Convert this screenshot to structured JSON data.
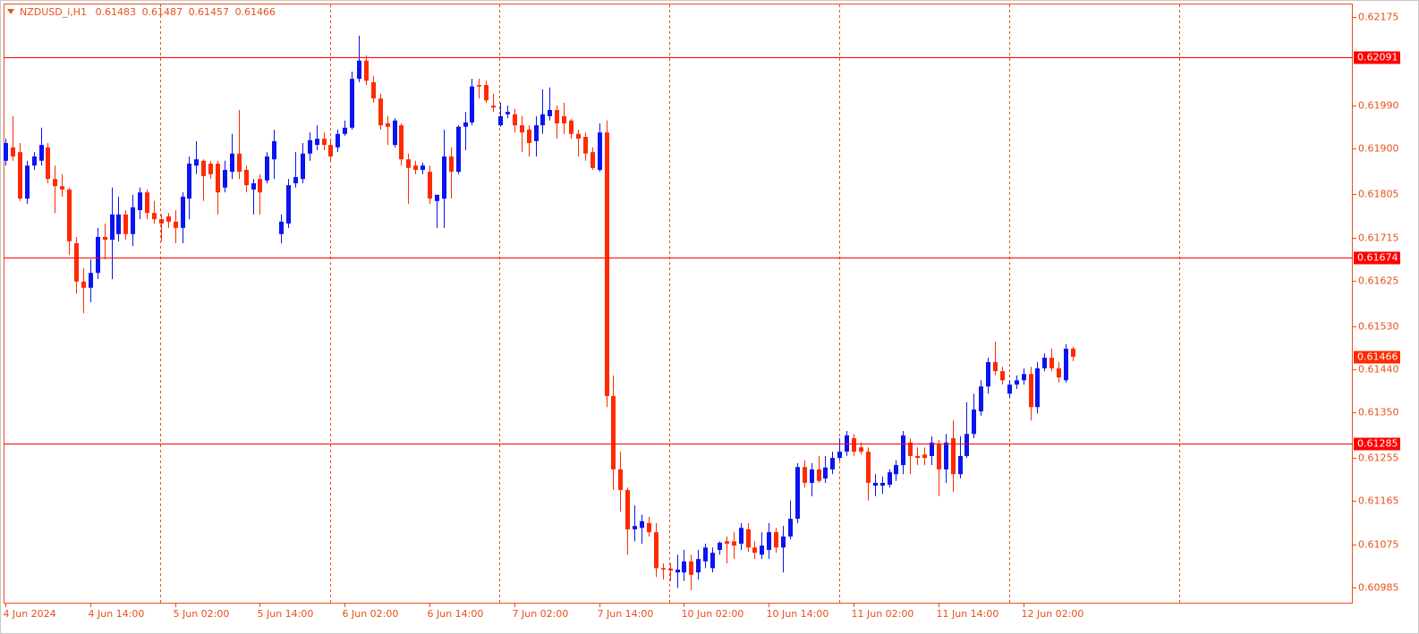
{
  "chart_data": {
    "type": "candlestick",
    "symbol": "NZDUSD_i,H1",
    "categories": [
      "4 Jun 2024",
      null,
      null,
      null,
      null,
      null,
      null,
      null,
      null,
      null,
      null,
      null,
      "4 Jun 14:00",
      null,
      null,
      null,
      null,
      null,
      null,
      null,
      null,
      null,
      null,
      null,
      "5 Jun 02:00",
      null,
      null,
      null,
      null,
      null,
      null,
      null,
      null,
      null,
      null,
      null,
      "5 Jun 14:00",
      null,
      null,
      null,
      null,
      null,
      null,
      null,
      null,
      null,
      null,
      null,
      "6 Jun 02:00",
      null,
      null,
      null,
      null,
      null,
      null,
      null,
      null,
      null,
      null,
      null,
      "6 Jun 14:00",
      null,
      null,
      null,
      null,
      null,
      null,
      null,
      null,
      null,
      null,
      null,
      "7 Jun 02:00",
      null,
      null,
      null,
      null,
      null,
      null,
      null,
      null,
      null,
      null,
      null,
      "7 Jun 14:00",
      null,
      null,
      null,
      null,
      null,
      null,
      null,
      null,
      null,
      null,
      null,
      "10 Jun 02:00",
      null,
      null,
      null,
      null,
      null,
      null,
      null,
      null,
      null,
      null,
      null,
      "10 Jun 14:00",
      null,
      null,
      null,
      null,
      null,
      null,
      null,
      null,
      null,
      null,
      null,
      "11 Jun 02:00",
      null,
      null,
      null,
      null,
      null,
      null,
      null,
      null,
      null,
      null,
      null,
      "11 Jun 14:00",
      null,
      null,
      null,
      null,
      null,
      null,
      null,
      null,
      null,
      null,
      null,
      "12 Jun 02:00",
      null,
      null,
      null,
      null,
      null,
      null,
      null
    ],
    "open": [
      0.61875,
      0.61903,
      0.61893,
      0.61796,
      0.61865,
      0.61875,
      0.61903,
      0.61837,
      0.61822,
      0.61815,
      0.61703,
      0.61623,
      0.6161,
      0.61641,
      0.61716,
      0.6171,
      0.61722,
      0.61763,
      0.61722,
      0.61772,
      0.61809,
      0.61766,
      0.61753,
      0.61759,
      0.61748,
      0.61735,
      0.61796,
      0.61865,
      0.61875,
      0.61869,
      0.61869,
      0.61819,
      0.61852,
      0.6189,
      0.61856,
      0.61815,
      0.61837,
      0.61834,
      0.61878,
      0.61722,
      0.61744,
      0.61828,
      0.61837,
      0.6189,
      0.61908,
      0.61921,
      0.61908,
      0.61903,
      0.61931,
      0.61944,
      0.62046,
      0.62084,
      0.62039,
      0.62005,
      0.61953,
      0.61908,
      0.61949,
      0.61878,
      0.61865,
      0.61856,
      0.61852,
      0.61791,
      0.61796,
      0.61884,
      0.61852,
      0.61946,
      0.61955,
      0.62033,
      0.62033,
      0.6199,
      0.61949,
      0.61972,
      0.61972,
      0.61949,
      0.6194,
      0.61916,
      0.61949,
      0.61968,
      0.61981,
      0.61968,
      0.61959,
      0.61931,
      0.61925,
      0.61893,
      0.61856,
      0.61934,
      0.61384,
      0.61231,
      0.61188,
      0.61106,
      0.61109,
      0.61119,
      0.611,
      0.61025,
      0.61024,
      0.61016,
      0.61016,
      0.61039,
      0.61016,
      0.61039,
      0.61025,
      0.61063,
      0.61081,
      0.61081,
      0.61076,
      0.61106,
      0.61068,
      0.61053,
      0.61063,
      0.611,
      0.61068,
      0.61091,
      0.61128,
      0.61236,
      0.61203,
      0.61231,
      0.61212,
      0.61231,
      0.61255,
      0.61268,
      0.61296,
      0.61277,
      0.61268,
      0.61197,
      0.61197,
      0.61199,
      0.61221,
      0.6124,
      0.61287,
      0.61259,
      0.61262,
      0.61259,
      0.61283,
      0.61231,
      0.61296,
      0.61221,
      0.61259,
      0.61305,
      0.61352,
      0.61404,
      0.61455,
      0.61436,
      0.61389,
      0.61408,
      0.61417,
      0.6143,
      0.61361,
      0.61442,
      0.61464,
      0.61442,
      0.61417,
      0.61483
    ],
    "high": [
      0.61921,
      0.61968,
      0.61912,
      0.61875,
      0.61893,
      0.61944,
      0.61912,
      0.61865,
      0.61847,
      0.61819,
      0.61716,
      0.61651,
      0.61669,
      0.61735,
      0.61744,
      0.61819,
      0.618,
      0.61772,
      0.61804,
      0.61819,
      0.61815,
      0.61791,
      0.61763,
      0.61766,
      0.61772,
      0.61809,
      0.61884,
      0.61916,
      0.61878,
      0.61875,
      0.61875,
      0.61875,
      0.61931,
      0.61981,
      0.61865,
      0.61837,
      0.61847,
      0.61893,
      0.6194,
      0.61763,
      0.61837,
      0.61893,
      0.61912,
      0.61934,
      0.61949,
      0.61934,
      0.61921,
      0.6194,
      0.61959,
      0.62061,
      0.62136,
      0.62095,
      0.62052,
      0.62015,
      0.61968,
      0.61964,
      0.61953,
      0.6189,
      0.61875,
      0.61871,
      0.61865,
      0.61804,
      0.6194,
      0.61903,
      0.61949,
      0.61977,
      0.62046,
      0.62046,
      0.62042,
      0.62015,
      0.61996,
      0.6199,
      0.61983,
      0.61968,
      0.61949,
      0.61968,
      0.62024,
      0.62028,
      0.6199,
      0.61996,
      0.61962,
      0.6194,
      0.61934,
      0.61903,
      0.61953,
      0.61959,
      0.61427,
      0.61268,
      0.61193,
      0.61156,
      0.61137,
      0.61132,
      0.61119,
      0.61035,
      0.61035,
      0.61053,
      0.61063,
      0.61053,
      0.61063,
      0.61076,
      0.61068,
      0.61081,
      0.61091,
      0.611,
      0.61119,
      0.61119,
      0.61081,
      0.611,
      0.61119,
      0.61109,
      0.61113,
      0.61166,
      0.61244,
      0.6125,
      0.61244,
      0.61259,
      0.61259,
      0.61268,
      0.61296,
      0.61311,
      0.61305,
      0.61287,
      0.61277,
      0.61221,
      0.61216,
      0.61231,
      0.6125,
      0.61311,
      0.61296,
      0.61277,
      0.61277,
      0.613,
      0.61292,
      0.61305,
      0.61333,
      0.613,
      0.61371,
      0.61389,
      0.61417,
      0.61464,
      0.61498,
      0.61445,
      0.61417,
      0.61427,
      0.61442,
      0.61445,
      0.61455,
      0.61473,
      0.61483,
      0.61455,
      0.61492,
      0.61487
    ],
    "low": [
      0.61865,
      0.61875,
      0.61791,
      0.61785,
      0.61856,
      0.61865,
      0.61828,
      0.61766,
      0.618,
      0.61679,
      0.61598,
      0.61557,
      0.6158,
      0.61628,
      0.61669,
      0.61628,
      0.61707,
      0.6171,
      0.61697,
      0.61753,
      0.61753,
      0.61744,
      0.61707,
      0.61735,
      0.61703,
      0.61703,
      0.61753,
      0.61847,
      0.61791,
      0.61837,
      0.61763,
      0.61809,
      0.61837,
      0.61837,
      0.61809,
      0.61763,
      0.61763,
      0.61828,
      0.61837,
      0.61703,
      0.61735,
      0.61819,
      0.61828,
      0.61875,
      0.61897,
      0.61897,
      0.61875,
      0.61893,
      0.61927,
      0.6194,
      0.62039,
      0.62033,
      0.61996,
      0.6194,
      0.61908,
      0.61903,
      0.61865,
      0.61785,
      0.61847,
      0.61847,
      0.61785,
      0.61735,
      0.61735,
      0.61796,
      0.61847,
      0.61897,
      0.61949,
      0.62005,
      0.61996,
      0.61977,
      0.61946,
      0.61964,
      0.61934,
      0.61893,
      0.61884,
      0.61884,
      0.61931,
      0.61959,
      0.61921,
      0.61931,
      0.61921,
      0.61884,
      0.61875,
      0.61856,
      0.61852,
      0.61361,
      0.61188,
      0.61143,
      0.61053,
      0.61081,
      0.61076,
      0.61091,
      0.61007,
      0.61001,
      0.60998,
      0.60984,
      0.60998,
      0.60979,
      0.61001,
      0.61025,
      0.61016,
      0.61053,
      0.61035,
      0.61044,
      0.61063,
      0.61059,
      0.61044,
      0.61044,
      0.61044,
      0.61057,
      0.61016,
      0.61085,
      0.61119,
      0.61193,
      0.61175,
      0.61203,
      0.61203,
      0.61221,
      0.6125,
      0.61259,
      0.61259,
      0.61262,
      0.61166,
      0.61175,
      0.6118,
      0.61193,
      0.61207,
      0.61221,
      0.61221,
      0.6124,
      0.6124,
      0.6124,
      0.61175,
      0.61203,
      0.61184,
      0.61212,
      0.61255,
      0.61296,
      0.61343,
      0.61389,
      0.61427,
      0.61408,
      0.6138,
      0.61399,
      0.61408,
      0.61333,
      0.61348,
      0.61436,
      0.61436,
      0.61412,
      0.61412,
      0.61457
    ],
    "close": [
      0.61912,
      0.61884,
      0.61796,
      0.61865,
      0.61884,
      0.61908,
      0.61837,
      0.61822,
      0.61815,
      0.61707,
      0.61623,
      0.6161,
      0.61641,
      0.61716,
      0.6171,
      0.61763,
      0.61763,
      0.61722,
      0.61778,
      0.61809,
      0.61766,
      0.61753,
      0.61744,
      0.61748,
      0.61735,
      0.618,
      0.61869,
      0.61878,
      0.61843,
      0.61847,
      0.61809,
      0.61856,
      0.6189,
      0.61852,
      0.61824,
      0.61828,
      0.61809,
      0.61884,
      0.61916,
      0.61748,
      0.61824,
      0.61841,
      0.6189,
      0.61918,
      0.61921,
      0.61908,
      0.61884,
      0.61931,
      0.61944,
      0.62046,
      0.62084,
      0.62042,
      0.62005,
      0.61949,
      0.61946,
      0.61959,
      0.61878,
      0.6186,
      0.61856,
      0.61865,
      0.61796,
      0.61804,
      0.61884,
      0.61852,
      0.61946,
      0.61955,
      0.6203,
      0.6203,
      0.62001,
      0.61986,
      0.61968,
      0.61977,
      0.61949,
      0.61934,
      0.61912,
      0.61949,
      0.61972,
      0.61981,
      0.61953,
      0.61953,
      0.61931,
      0.61921,
      0.6189,
      0.6186,
      0.61934,
      0.61384,
      0.61231,
      0.61188,
      0.61106,
      0.61113,
      0.61123,
      0.611,
      0.61025,
      0.61022,
      0.6102,
      0.61022,
      0.61039,
      0.61011,
      0.61044,
      0.61068,
      0.61057,
      0.61078,
      0.61076,
      0.61072,
      0.61109,
      0.61068,
      0.61057,
      0.61072,
      0.611,
      0.61068,
      0.61091,
      0.61128,
      0.61236,
      0.61203,
      0.61231,
      0.61207,
      0.61235,
      0.61255,
      0.61268,
      0.61302,
      0.61268,
      0.61268,
      0.61203,
      0.61203,
      0.61203,
      0.61225,
      0.6124,
      0.61302,
      0.61259,
      0.61255,
      0.61255,
      0.61287,
      0.61231,
      0.61287,
      0.61221,
      0.61259,
      0.61305,
      0.61356,
      0.61404,
      0.61455,
      0.61436,
      0.61417,
      0.61408,
      0.61417,
      0.6143,
      0.61361,
      0.61442,
      0.61464,
      0.61442,
      0.61423,
      0.61483,
      0.61466
    ],
    "up_color": "#0a14f0",
    "down_color": "#ff2a00",
    "ylim": [
      0.60951,
      0.62203
    ],
    "yticks": [
      0.62175,
      {
        "value": 0.6199,
        "label": "0.61990"
      },
      {
        "value": 0.619,
        "label": "0.61900"
      },
      0.61805,
      0.61715,
      0.61625,
      {
        "value": 0.6153,
        "label": "0.61530"
      },
      {
        "value": 0.6144,
        "label": "0.61440"
      },
      {
        "value": 0.6135,
        "label": "0.61350"
      },
      0.61255,
      0.61165,
      0.61075,
      0.60985
    ],
    "levels": [
      0.62091,
      0.61674,
      0.61285
    ],
    "level_color": "#ff0000"
  }
}
